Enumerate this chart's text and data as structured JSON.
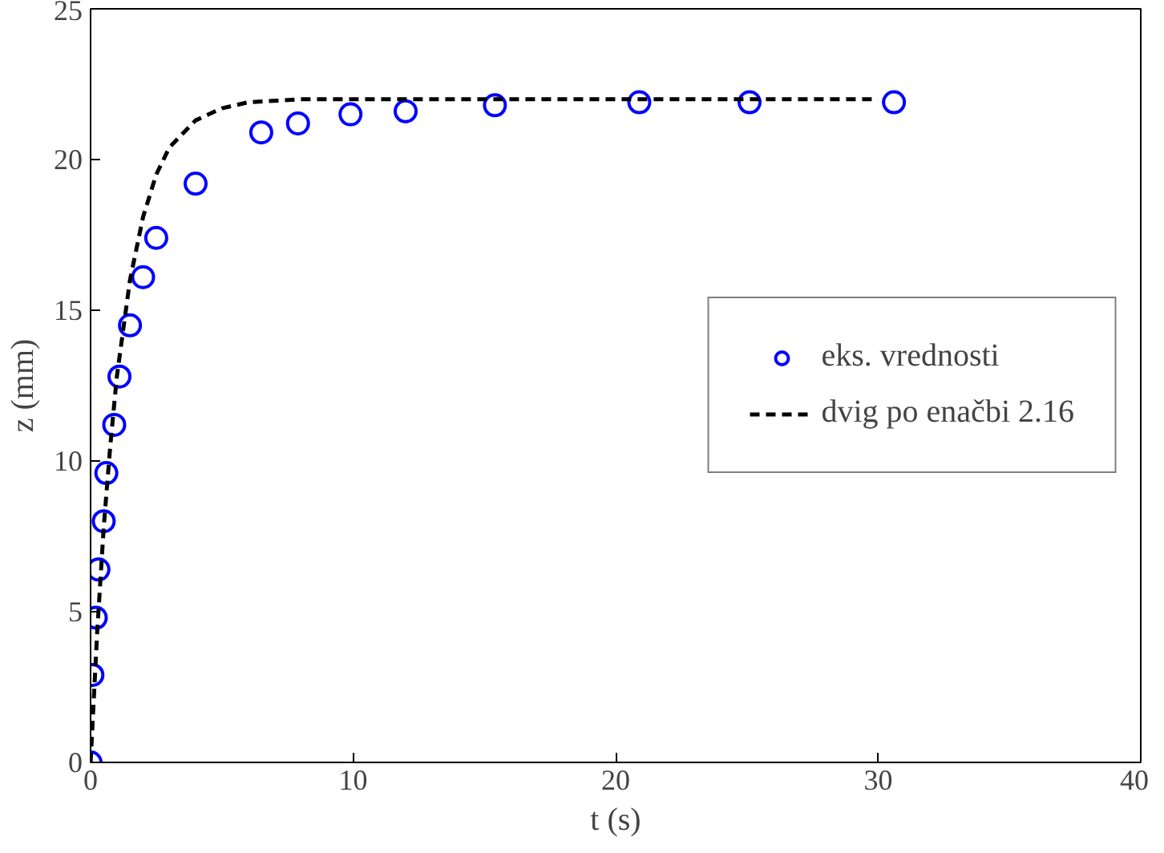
{
  "chart_data": {
    "type": "scatter",
    "xlabel": "t (s)",
    "ylabel": "z (mm)",
    "xlim": [
      0,
      40
    ],
    "ylim": [
      0,
      25
    ],
    "xticks": [
      0,
      10,
      20,
      30,
      40
    ],
    "yticks": [
      0,
      5,
      10,
      15,
      20,
      25
    ],
    "grid": false,
    "legend": "right",
    "series": [
      {
        "name": "eks. vrednosti",
        "marker": "circle",
        "color": "#0000ff",
        "x": [
          0,
          0.07,
          0.2,
          0.3,
          0.5,
          0.6,
          0.9,
          1.1,
          1.5,
          2.0,
          2.5,
          4.0,
          6.5,
          7.9,
          9.9,
          12.0,
          15.4,
          20.9,
          25.1,
          30.6
        ],
        "values": [
          0,
          2.9,
          4.8,
          6.4,
          8.0,
          9.6,
          11.2,
          12.8,
          14.5,
          16.1,
          17.4,
          19.2,
          20.9,
          21.2,
          21.5,
          21.6,
          21.8,
          21.9,
          21.9,
          21.9
        ]
      },
      {
        "name": "dvig po enačbi 2.16",
        "type": "line",
        "line_style": "dashed",
        "color": "#000000",
        "x": [
          0,
          0.25,
          0.5,
          0.75,
          1,
          1.5,
          2,
          2.5,
          3,
          4,
          5,
          6,
          8,
          10,
          15,
          20,
          25,
          30
        ],
        "values": [
          0,
          4.3,
          7.8,
          10.5,
          12.8,
          16.0,
          18.1,
          19.5,
          20.4,
          21.3,
          21.7,
          21.9,
          22,
          22,
          22,
          22,
          22,
          22
        ]
      }
    ]
  }
}
